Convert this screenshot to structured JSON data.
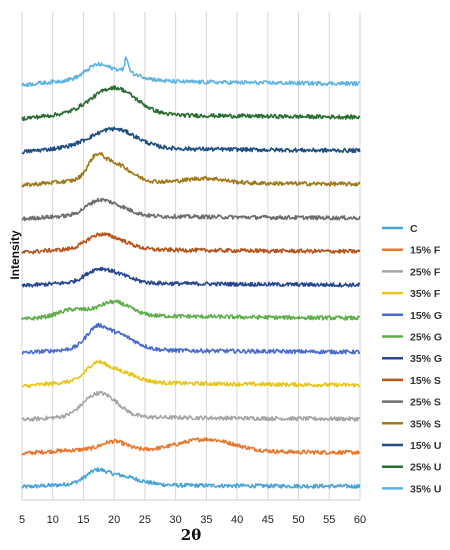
{
  "chart_data": {
    "type": "line",
    "title": "",
    "xlabel": "2θ",
    "ylabel": "Intensity",
    "xlim": [
      5,
      60
    ],
    "x_ticks": [
      5,
      10,
      15,
      20,
      25,
      30,
      35,
      40,
      45,
      50,
      55,
      60
    ],
    "grid": "vertical",
    "legend_position": "right",
    "series": [
      {
        "name": "C",
        "color": "#4aa3d6",
        "peaks": [
          [
            17,
            0.35,
            1.5
          ],
          [
            20,
            0.45,
            3.5
          ]
        ],
        "base": 0.1
      },
      {
        "name": "15% F",
        "color": "#e8772e",
        "peaks": [
          [
            20,
            0.4,
            2.0
          ],
          [
            35,
            0.55,
            4.5
          ]
        ],
        "base": 0.15
      },
      {
        "name": "25% F",
        "color": "#a6a6a6",
        "peaks": [
          [
            17,
            0.9,
            2.2
          ],
          [
            20,
            0.4,
            2.0
          ]
        ],
        "base": 0.15
      },
      {
        "name": "35% F",
        "color": "#e6c61c",
        "peaks": [
          [
            17,
            0.55,
            1.5
          ],
          [
            20,
            0.55,
            3.0
          ]
        ],
        "base": 0.2
      },
      {
        "name": "15% G",
        "color": "#4a6bd0",
        "peaks": [
          [
            17,
            0.6,
            1.5
          ],
          [
            20,
            0.75,
            3.0
          ]
        ],
        "base": 0.15
      },
      {
        "name": "25% G",
        "color": "#5fae4b",
        "peaks": [
          [
            13,
            0.25,
            2.0
          ],
          [
            20,
            0.6,
            2.5
          ]
        ],
        "base": 0.2
      },
      {
        "name": "35% G",
        "color": "#27488f",
        "peaks": [
          [
            17,
            0.4,
            1.8
          ],
          [
            20,
            0.4,
            2.5
          ]
        ],
        "base": 0.15
      },
      {
        "name": "15% S",
        "color": "#b5541b",
        "peaks": [
          [
            17,
            0.4,
            1.8
          ],
          [
            20,
            0.45,
            2.5
          ]
        ],
        "base": 0.15
      },
      {
        "name": "25% S",
        "color": "#6e6e6e",
        "peaks": [
          [
            17,
            0.45,
            1.8
          ],
          [
            20,
            0.45,
            2.5
          ]
        ],
        "base": 0.15
      },
      {
        "name": "35% S",
        "color": "#a07a18",
        "peaks": [
          [
            17,
            0.8,
            1.3
          ],
          [
            20,
            0.8,
            2.5
          ],
          [
            35,
            0.2,
            3.0
          ]
        ],
        "base": 0.2
      },
      {
        "name": "15% U",
        "color": "#1f4f82",
        "peaks": [
          [
            20,
            0.85,
            3.5
          ]
        ],
        "base": 0.2
      },
      {
        "name": "25% U",
        "color": "#2b6e34",
        "peaks": [
          [
            20,
            1.2,
            3.5
          ]
        ],
        "base": 0.2
      },
      {
        "name": "35% U",
        "color": "#5fb3e0",
        "peaks": [
          [
            17,
            0.35,
            1.5
          ],
          [
            20,
            0.5,
            3.5
          ],
          [
            22,
            0.6,
            0.3
          ]
        ],
        "base": 0.2
      }
    ]
  }
}
